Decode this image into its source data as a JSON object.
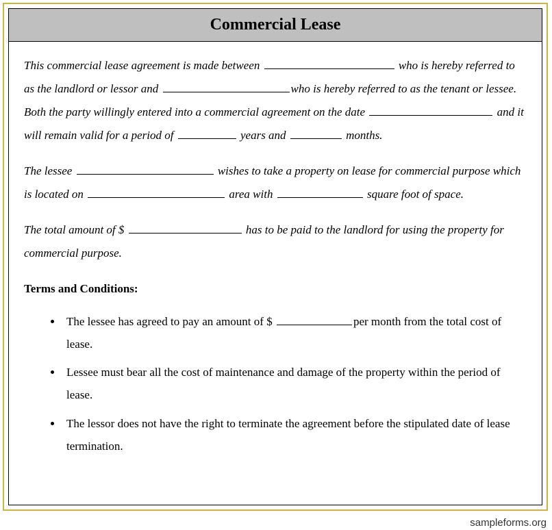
{
  "document": {
    "title": "Commercial Lease",
    "outer_border_color": "#c9b93a",
    "title_bg": "#bfbfbf",
    "font_family": "Georgia, serif",
    "body_font_size": 17,
    "line_height": 2.0
  },
  "paragraphs": {
    "p1": {
      "seg1": "This commercial lease agreement is made between ",
      "blank1_width": 190,
      "seg2": " who is hereby referred to as the landlord or lessor and ",
      "blank2_width": 185,
      "seg3": "who is hereby referred to as the tenant or lessee. Both the party willingly entered into a commercial agreement on the date ",
      "blank3_width": 180,
      "seg4": " and it will remain valid for a period of ",
      "blank4_width": 85,
      "seg5": " years and ",
      "blank5_width": 75,
      "seg6": " months."
    },
    "p2": {
      "seg1": "The lessee ",
      "blank1_width": 200,
      "seg2": " wishes to take a property on lease for commercial purpose which is located on ",
      "blank2_width": 200,
      "seg3": " area with ",
      "blank3_width": 125,
      "seg4": " square foot of space."
    },
    "p3": {
      "seg1": "The total amount of $ ",
      "blank1_width": 165,
      "seg2": " has to be paid to the landlord for using the property for commercial purpose."
    }
  },
  "terms": {
    "heading": "Terms and Conditions:",
    "items": [
      {
        "seg1": "The lessee has agreed to pay an amount of $ ",
        "blank_width": 110,
        "seg2": "per month from the total cost of lease."
      },
      {
        "seg1": "Lessee must bear all the cost of maintenance and damage of the property within the period of lease.",
        "blank_width": 0,
        "seg2": ""
      },
      {
        "seg1": "The lessor does not have the right to terminate the agreement before the stipulated date of lease termination.",
        "blank_width": 0,
        "seg2": ""
      }
    ]
  },
  "footer": {
    "url": "sampleforms.org",
    "faint": ""
  }
}
